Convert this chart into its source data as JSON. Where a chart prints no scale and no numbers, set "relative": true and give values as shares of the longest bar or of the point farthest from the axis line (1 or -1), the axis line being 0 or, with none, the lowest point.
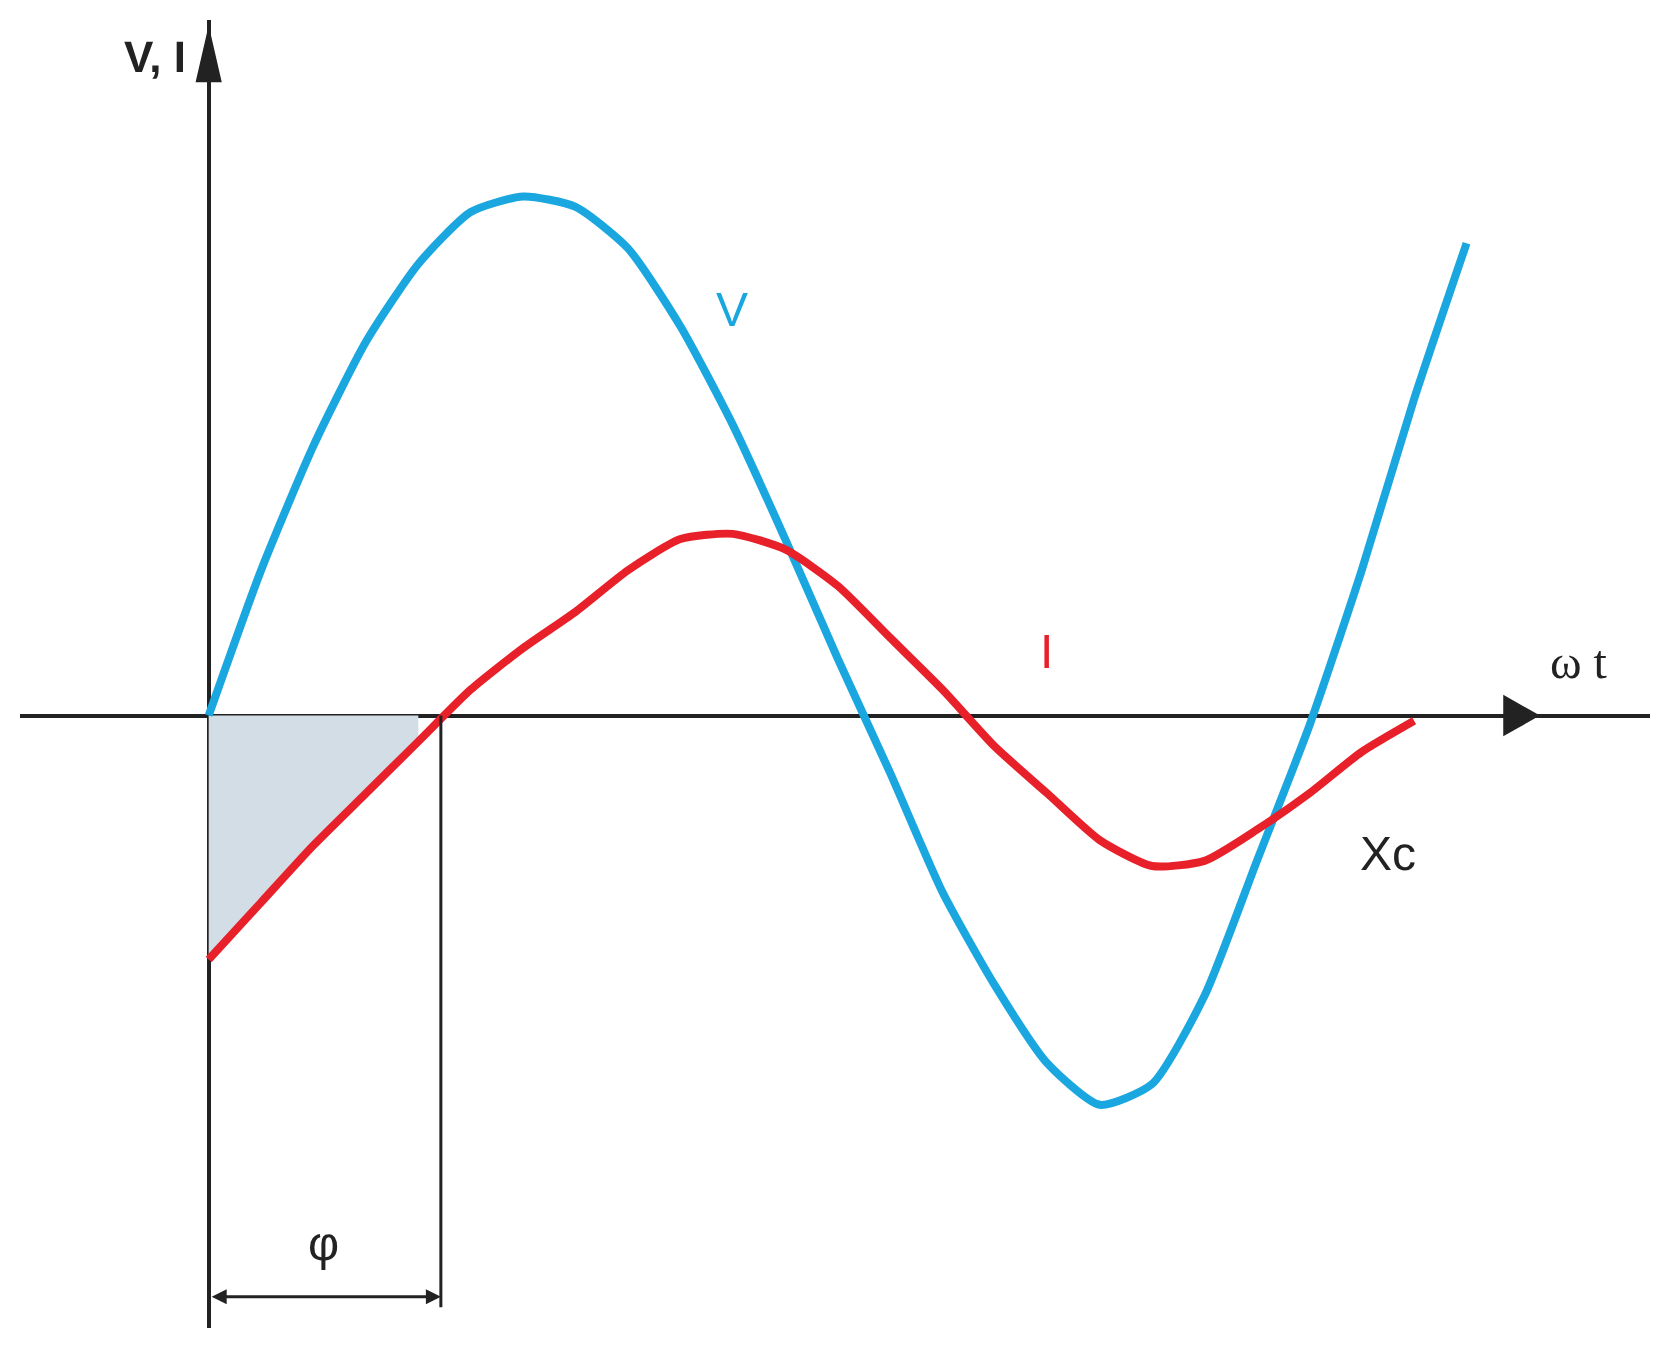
{
  "chart_data": {
    "type": "line",
    "relative": true,
    "xlabel": "ω t",
    "ylabel": "V, I",
    "legend": false,
    "marker": "none",
    "line_style": "solid",
    "categories": [
      null,
      null,
      null,
      null,
      null,
      null,
      null,
      null,
      null,
      null,
      null,
      null,
      null,
      null,
      null,
      null,
      null,
      null,
      null,
      null,
      null,
      null,
      null,
      null,
      null
    ],
    "series": [
      {
        "name": "V",
        "color": "#1aa7e0",
        "values": [
          0,
          0.28,
          0.52,
          0.72,
          0.87,
          0.97,
          1,
          0.98,
          0.9,
          0.75,
          0.56,
          0.34,
          0.11,
          -0.11,
          -0.34,
          -0.52,
          -0.67,
          -0.75,
          -0.71,
          -0.54,
          -0.28,
          -0.02,
          0.28,
          0.61,
          0.91
        ]
      },
      {
        "name": "I",
        "color": "#e8202a",
        "values": [
          -0.47,
          -0.36,
          -0.25,
          -0.15,
          -0.05,
          0.05,
          0.13,
          0.2,
          0.28,
          0.34,
          0.35,
          0.32,
          0.25,
          0.15,
          0.05,
          -0.06,
          -0.15,
          -0.24,
          -0.29,
          -0.28,
          -0.22,
          -0.15,
          -0.07,
          -0.01,
          null
        ]
      },
      {
        "type": "area",
        "color": "#d3dde5",
        "values": [
          -0.47,
          -0.36,
          -0.25,
          -0.15,
          -0.05,
          null,
          null,
          null,
          null,
          null,
          null,
          null,
          null,
          null,
          null,
          null,
          null,
          null,
          null,
          null,
          null,
          null,
          null,
          null,
          null
        ]
      }
    ],
    "annotations": [
      "Xc",
      "φ"
    ]
  }
}
